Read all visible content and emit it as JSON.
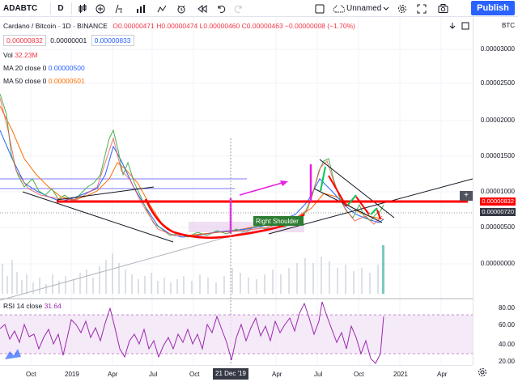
{
  "toolbar": {
    "symbol": "ADABTC",
    "interval": "D",
    "layout_name": "Unnamed",
    "publish_label": "Publish"
  },
  "legend": {
    "title": "Cardano / Bitcoin · 1D · BINANCE",
    "ohlc": "O0.00000471 H0.00000474 L0.00000460 C0.00000463 −0.00000008 (−1.70%)",
    "sell_price": "0.00000832",
    "spread": "0.00000001",
    "buy_price": "0.00000833",
    "vol_label": "Vol",
    "vol_value": "32.23M",
    "ma20_label": "MA 20 close 0",
    "ma20_value": "0.00000500",
    "ma50_label": "MA 50 close 0",
    "ma50_value": "0.00000501"
  },
  "annotation": {
    "right_shoulder": "Right Shoulder"
  },
  "price_axis": {
    "currency": "BTC",
    "labels": [
      "0.00003000",
      "0.00002500",
      "0.00002000",
      "0.00001500",
      "0.00001000",
      "0.00000500",
      "0.00000000"
    ],
    "last_price": "0.00000832",
    "crosshair_price": "0.00000720"
  },
  "rsi": {
    "label": "RSI 14 close",
    "value": "31.64",
    "labels": [
      "80.00",
      "60.00",
      "40.00",
      "20.00"
    ]
  },
  "time_axis": {
    "labels": [
      "Oct",
      "2019",
      "Apr",
      "Jul",
      "Oct",
      "Apr",
      "Jul",
      "Oct",
      "2021",
      "Apr"
    ],
    "cursor_label": "21 Dec '19"
  },
  "colors": {
    "accent": "#2962ff",
    "red_line": "#ff0000",
    "magenta": "#e91ee4",
    "rsi_line": "#9c27b0",
    "ma_blue": "#2962ff",
    "ma_orange": "#ff6d00"
  }
}
